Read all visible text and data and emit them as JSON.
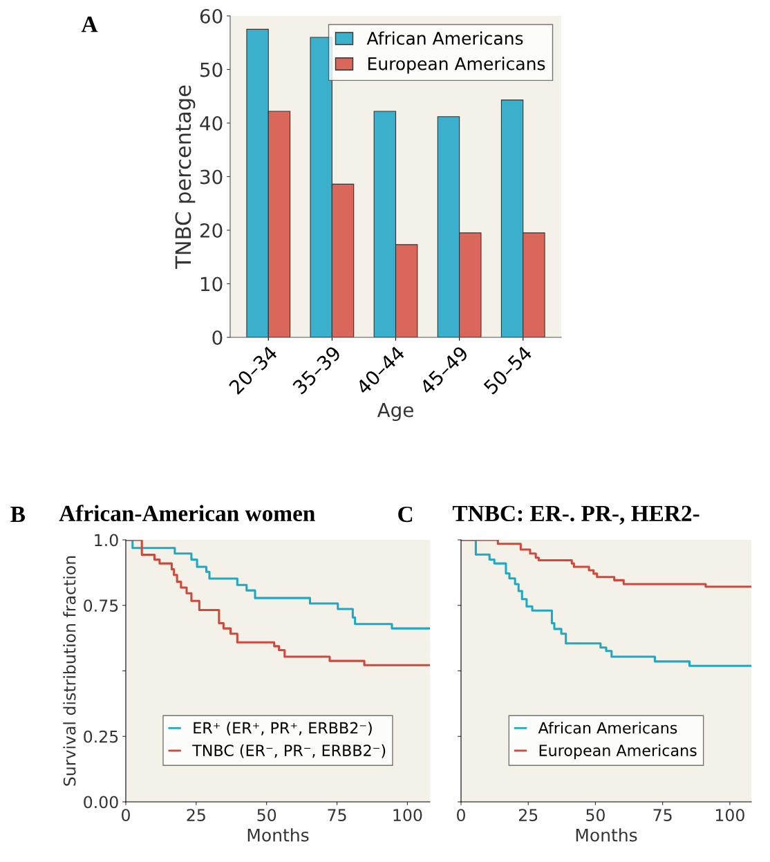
{
  "chart_data": [
    {
      "type": "bar",
      "annotations": [
        "A"
      ],
      "xlabel": "Age",
      "ylabel": "TNBC percentage",
      "categories": [
        "20–34",
        "35–39",
        "40–44",
        "45–49",
        "50–54"
      ],
      "series": [
        {
          "name": "African Americans",
          "color": "#3bb0cc",
          "values": [
            57.5,
            56,
            42.2,
            41.2,
            44.3
          ]
        },
        {
          "name": "European Americans",
          "color": "#d9675c",
          "values": [
            42.2,
            28.6,
            17.3,
            19.5,
            19.5
          ]
        }
      ],
      "ylim": [
        0,
        60
      ],
      "yticks": [
        0,
        10,
        20,
        30,
        40,
        50,
        60
      ],
      "grid": false,
      "legend": "top right"
    },
    {
      "type": "step",
      "annotations": [
        "B"
      ],
      "title": "African-American women",
      "xlabel": "Months",
      "ylabel": "Survival distribution fraction",
      "series": [
        {
          "name": "ER⁺ (ER⁺, PR⁺, ERBB2⁻)",
          "color": "#1fa8c4",
          "x": [
            0,
            2.4,
            17.4,
            23.3,
            25.3,
            28.6,
            29.7,
            39.6,
            42.9,
            45.9,
            65.4,
            75.3,
            80.6,
            81.4,
            94.5,
            108
          ],
          "values": [
            1.0,
            0.969,
            0.948,
            0.925,
            0.897,
            0.878,
            0.852,
            0.828,
            0.807,
            0.778,
            0.757,
            0.736,
            0.704,
            0.679,
            0.662,
            0.662
          ]
        },
        {
          "name": "TNBC (ER⁻, PR⁻, ERBB2⁻)",
          "color": "#d0473c",
          "x": [
            0,
            5.7,
            10.2,
            12.0,
            16.3,
            17.1,
            18.2,
            19.6,
            21.6,
            23.3,
            26.1,
            33.1,
            34.7,
            37.2,
            39.6,
            52.7,
            54.4,
            56.4,
            72.4,
            84.7,
            108
          ],
          "values": [
            1.0,
            0.943,
            0.925,
            0.91,
            0.888,
            0.866,
            0.84,
            0.818,
            0.796,
            0.767,
            0.732,
            0.682,
            0.662,
            0.642,
            0.609,
            0.594,
            0.579,
            0.554,
            0.538,
            0.522,
            0.522
          ]
        }
      ],
      "xlim": [
        0,
        108
      ],
      "xticks": [
        0,
        25,
        50,
        75,
        100
      ],
      "ylim": [
        0,
        1.0
      ],
      "yticks": [
        {
          "value": 0,
          "label": "0.00"
        },
        {
          "value": 0.25,
          "label": "0.25"
        },
        {
          "value": 0.5,
          "label": null
        },
        {
          "value": 0.75,
          "label": "0.75"
        },
        {
          "value": 1.0,
          "label": "1.0"
        }
      ],
      "grid": false,
      "legend": "bottom"
    },
    {
      "type": "step",
      "annotations": [
        "C"
      ],
      "title": "TNBC: ER-. PR-, HER2-",
      "xlabel": "Months",
      "series": [
        {
          "name": "African Americans",
          "color": "#1fa8c4",
          "x": [
            0,
            5.5,
            10.6,
            12.4,
            16.7,
            18.0,
            20.1,
            21.4,
            22.7,
            24.4,
            26.5,
            33.8,
            34.7,
            37.3,
            39.0,
            51.9,
            54.0,
            56.0,
            72.1,
            85.0,
            108
          ],
          "values": [
            1.0,
            0.944,
            0.925,
            0.91,
            0.872,
            0.853,
            0.831,
            0.805,
            0.774,
            0.746,
            0.73,
            0.682,
            0.66,
            0.642,
            0.605,
            0.589,
            0.576,
            0.554,
            0.536,
            0.519,
            0.519
          ]
        },
        {
          "name": "European Americans",
          "color": "#d0473c",
          "x": [
            0,
            13.7,
            22.2,
            25.7,
            27.8,
            28.9,
            41.2,
            42.0,
            47.6,
            49.3,
            50.6,
            57.0,
            60.5,
            91.0,
            108
          ],
          "values": [
            1.0,
            0.985,
            0.963,
            0.948,
            0.932,
            0.922,
            0.91,
            0.897,
            0.884,
            0.871,
            0.858,
            0.846,
            0.831,
            0.821,
            0.821
          ]
        }
      ],
      "xlim": [
        0,
        108
      ],
      "xticks": [
        0,
        25,
        50,
        75,
        100
      ],
      "ylim": [
        0,
        1.0
      ],
      "yticks": [
        0,
        0.25,
        0.5,
        0.75,
        1.0
      ],
      "tick_labels": "x",
      "grid": false,
      "legend": "bottom"
    }
  ]
}
